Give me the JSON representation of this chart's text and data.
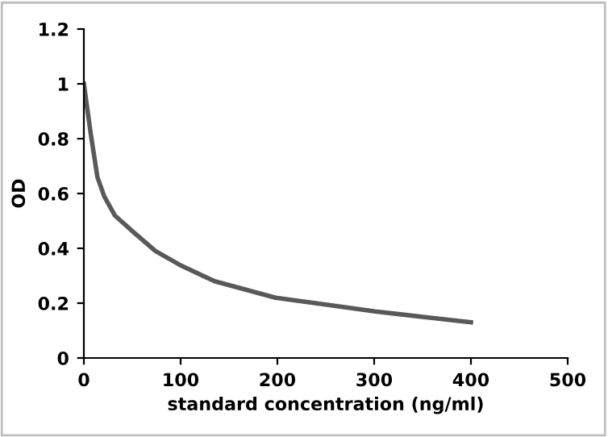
{
  "chart_data": {
    "type": "line",
    "xlabel": "standard concentration (ng/ml)",
    "ylabel": "OD",
    "series": [
      {
        "color": "#595959",
        "x": [
          0,
          7,
          14,
          21,
          32,
          51,
          74,
          99,
          135,
          198,
          250,
          301,
          350,
          400
        ],
        "values": [
          1.0,
          0.82,
          0.66,
          0.59,
          0.52,
          0.46,
          0.39,
          0.34,
          0.28,
          0.22,
          0.195,
          0.17,
          0.15,
          0.13
        ]
      }
    ],
    "xlim": [
      0,
      500
    ],
    "xticks": [
      0,
      100,
      200,
      300,
      400,
      500
    ],
    "ylim": [
      0,
      1.2
    ],
    "yticks": [
      0,
      0.2,
      0.4,
      0.6,
      0.8,
      1,
      1.2
    ],
    "grid": false,
    "legend": false,
    "marker": "none",
    "line_style": "solid"
  }
}
